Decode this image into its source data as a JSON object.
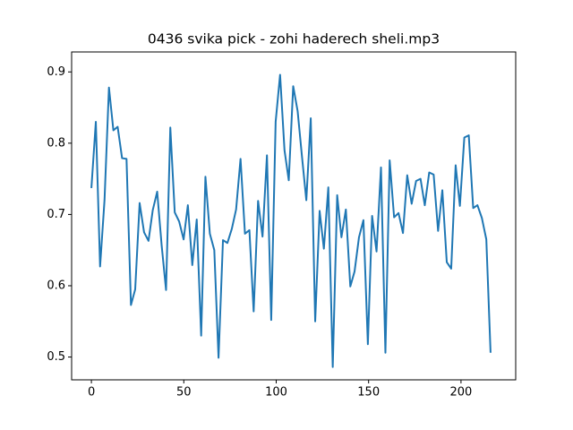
{
  "chart_data": {
    "type": "line",
    "title": "0436 svika pick - zohi haderech sheli.mp3",
    "x": [
      0,
      2.4,
      4.7,
      7.1,
      9.5,
      11.9,
      14.2,
      16.6,
      19.0,
      21.4,
      23.7,
      26.1,
      28.5,
      30.9,
      33.2,
      35.6,
      38.0,
      40.4,
      42.7,
      45.1,
      47.5,
      49.9,
      52.2,
      54.6,
      57.0,
      59.4,
      61.7,
      64.1,
      66.5,
      68.8,
      71.2,
      73.6,
      76.0,
      78.3,
      80.7,
      83.1,
      85.5,
      87.8,
      90.2,
      92.6,
      95.0,
      97.3,
      99.7,
      102.1,
      104.5,
      106.8,
      109.2,
      111.6,
      114.0,
      116.3,
      118.7,
      121.1,
      123.5,
      125.8,
      128.2,
      130.6,
      133.0,
      135.3,
      137.7,
      140.1,
      142.4,
      144.8,
      147.2,
      149.6,
      151.9,
      154.3,
      156.7,
      159.1,
      161.4,
      163.8,
      166.2,
      168.6,
      170.9,
      173.3,
      175.7,
      178.1,
      180.4,
      182.8,
      185.2,
      187.6,
      189.9,
      192.3,
      194.7,
      197.1,
      199.4,
      201.8,
      204.2,
      206.6,
      208.9,
      211.3,
      213.7,
      216.0
    ],
    "series": [
      {
        "color": "#1f77b4",
        "values": [
          0.737,
          0.83,
          0.627,
          0.72,
          0.878,
          0.818,
          0.823,
          0.779,
          0.778,
          0.573,
          0.595,
          0.716,
          0.675,
          0.663,
          0.706,
          0.732,
          0.657,
          0.594,
          0.822,
          0.703,
          0.69,
          0.665,
          0.713,
          0.629,
          0.693,
          0.53,
          0.753,
          0.673,
          0.65,
          0.499,
          0.664,
          0.66,
          0.68,
          0.707,
          0.778,
          0.673,
          0.678,
          0.564,
          0.719,
          0.669,
          0.783,
          0.552,
          0.83,
          0.896,
          0.79,
          0.748,
          0.88,
          0.845,
          0.78,
          0.72,
          0.835,
          0.55,
          0.705,
          0.652,
          0.738,
          0.486,
          0.727,
          0.668,
          0.707,
          0.599,
          0.62,
          0.668,
          0.692,
          0.518,
          0.698,
          0.648,
          0.766,
          0.506,
          0.776,
          0.696,
          0.702,
          0.674,
          0.755,
          0.715,
          0.747,
          0.75,
          0.713,
          0.759,
          0.756,
          0.677,
          0.734,
          0.633,
          0.624,
          0.769,
          0.712,
          0.808,
          0.811,
          0.709,
          0.713,
          0.695,
          0.665,
          0.506
        ]
      }
    ],
    "xlim": [
      -10.7,
      229.6
    ],
    "xticks": [
      0,
      50,
      100,
      150,
      200
    ],
    "ylim": [
      0.468,
      0.928
    ],
    "yticks": [
      0.5,
      0.6,
      0.7,
      0.8,
      0.9
    ]
  }
}
